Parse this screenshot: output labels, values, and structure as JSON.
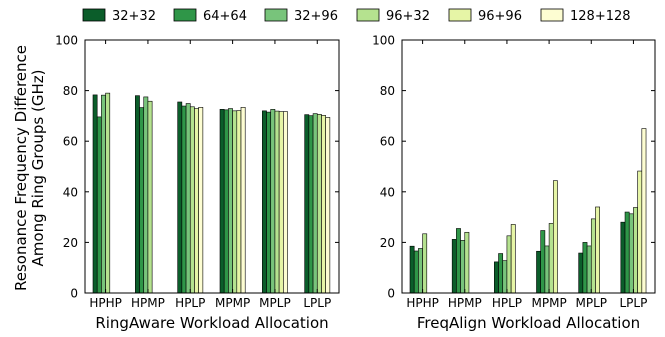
{
  "chart_data": {
    "type": "bar",
    "ylabel": [
      "Resonance Frequency Difference",
      "Among Ring Groups (GHz)"
    ],
    "ylim": [
      0,
      100
    ],
    "yticks": [
      0,
      20,
      40,
      60,
      80,
      100
    ],
    "grid": false,
    "legend_position": "top",
    "legend": [
      {
        "name": "32+32",
        "color": "#0b5d2a"
      },
      {
        "name": "64+64",
        "color": "#2f9648"
      },
      {
        "name": "32+96",
        "color": "#78c47b"
      },
      {
        "name": "96+32",
        "color": "#b5e28f"
      },
      {
        "name": "96+96",
        "color": "#e6f5a6"
      },
      {
        "name": "128+128",
        "color": "#fdfdd2"
      }
    ],
    "panels": [
      {
        "xlabel": "RingAware Workload Allocation",
        "categories": [
          "HPHP",
          "HPMP",
          "HPLP",
          "MPMP",
          "MPLP",
          "LPLP"
        ],
        "series": [
          {
            "name": "32+32",
            "values": [
              78.3,
              78.0,
              75.5,
              72.6,
              72.0,
              70.5
            ]
          },
          {
            "name": "64+64",
            "values": [
              69.6,
              73.3,
              73.9,
              72.4,
              71.5,
              70.1
            ]
          },
          {
            "name": "32+96",
            "values": [
              78.2,
              77.5,
              74.9,
              72.9,
              72.6,
              70.9
            ]
          },
          {
            "name": "96+32",
            "values": [
              79.0,
              75.8,
              73.6,
              72.0,
              71.9,
              70.6
            ]
          },
          {
            "name": "96+96",
            "values": [
              0,
              0,
              72.9,
              72.1,
              71.7,
              70.2
            ]
          },
          {
            "name": "128+128",
            "values": [
              0,
              0,
              73.4,
              73.4,
              71.7,
              69.4
            ]
          }
        ]
      },
      {
        "xlabel": "FreqAlign Workload Allocation",
        "categories": [
          "HPHP",
          "HPMP",
          "HPLP",
          "MPMP",
          "MPLP",
          "LPLP"
        ],
        "series": [
          {
            "name": "32+32",
            "values": [
              18.5,
              21.2,
              12.3,
              16.5,
              15.8,
              28.0
            ]
          },
          {
            "name": "64+64",
            "values": [
              16.6,
              25.5,
              15.6,
              24.7,
              20.0,
              32.0
            ]
          },
          {
            "name": "32+96",
            "values": [
              17.6,
              20.8,
              12.8,
              18.6,
              18.6,
              31.3
            ]
          },
          {
            "name": "96+32",
            "values": [
              23.4,
              24.0,
              22.6,
              27.5,
              29.3,
              33.8
            ]
          },
          {
            "name": "96+96",
            "values": [
              0,
              0,
              27.1,
              44.4,
              34.0,
              48.2
            ]
          },
          {
            "name": "128+128",
            "values": [
              0,
              0,
              0,
              0,
              0,
              65.0
            ]
          }
        ]
      }
    ]
  }
}
